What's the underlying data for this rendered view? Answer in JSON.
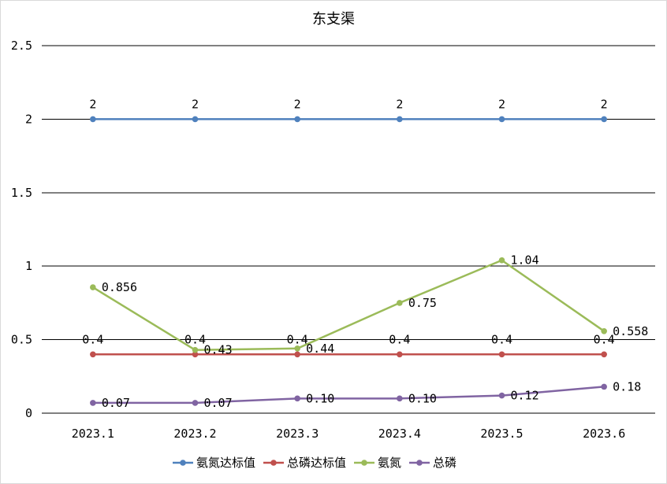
{
  "chart_data": {
    "type": "line",
    "title": "东支渠",
    "xlabel": "",
    "ylabel": "",
    "categories": [
      "2023.1",
      "2023.2",
      "2023.3",
      "2023.4",
      "2023.5",
      "2023.6"
    ],
    "ylim": [
      0,
      2.5
    ],
    "yticks": [
      "0",
      "0.5",
      "1",
      "1.5",
      "2",
      "2.5"
    ],
    "grid": true,
    "legend_position": "bottom",
    "series": [
      {
        "name": "氨氮达标值",
        "color": "#4f81bd",
        "values": [
          2,
          2,
          2,
          2,
          2,
          2
        ],
        "labels": [
          "2",
          "2",
          "2",
          "2",
          "2",
          "2"
        ],
        "label_pos": "above"
      },
      {
        "name": "总磷达标值",
        "color": "#c0504d",
        "values": [
          0.4,
          0.4,
          0.4,
          0.4,
          0.4,
          0.4
        ],
        "labels": [
          "0.4",
          "0.4",
          "0.4",
          "0.4",
          "0.4",
          "0.4"
        ],
        "label_pos": "above"
      },
      {
        "name": "氨氮",
        "color": "#9bbb59",
        "values": [
          0.856,
          0.43,
          0.44,
          0.75,
          1.04,
          0.558
        ],
        "labels": [
          "0.856",
          "0.43",
          "0.44",
          "0.75",
          "1.04",
          "0.558"
        ],
        "label_pos": "right"
      },
      {
        "name": "总磷",
        "color": "#8064a2",
        "values": [
          0.07,
          0.07,
          0.1,
          0.1,
          0.12,
          0.18
        ],
        "labels": [
          "0.07",
          "0.07",
          "0.10",
          "0.10",
          "0.12",
          "0.18"
        ],
        "label_pos": "right"
      }
    ]
  }
}
